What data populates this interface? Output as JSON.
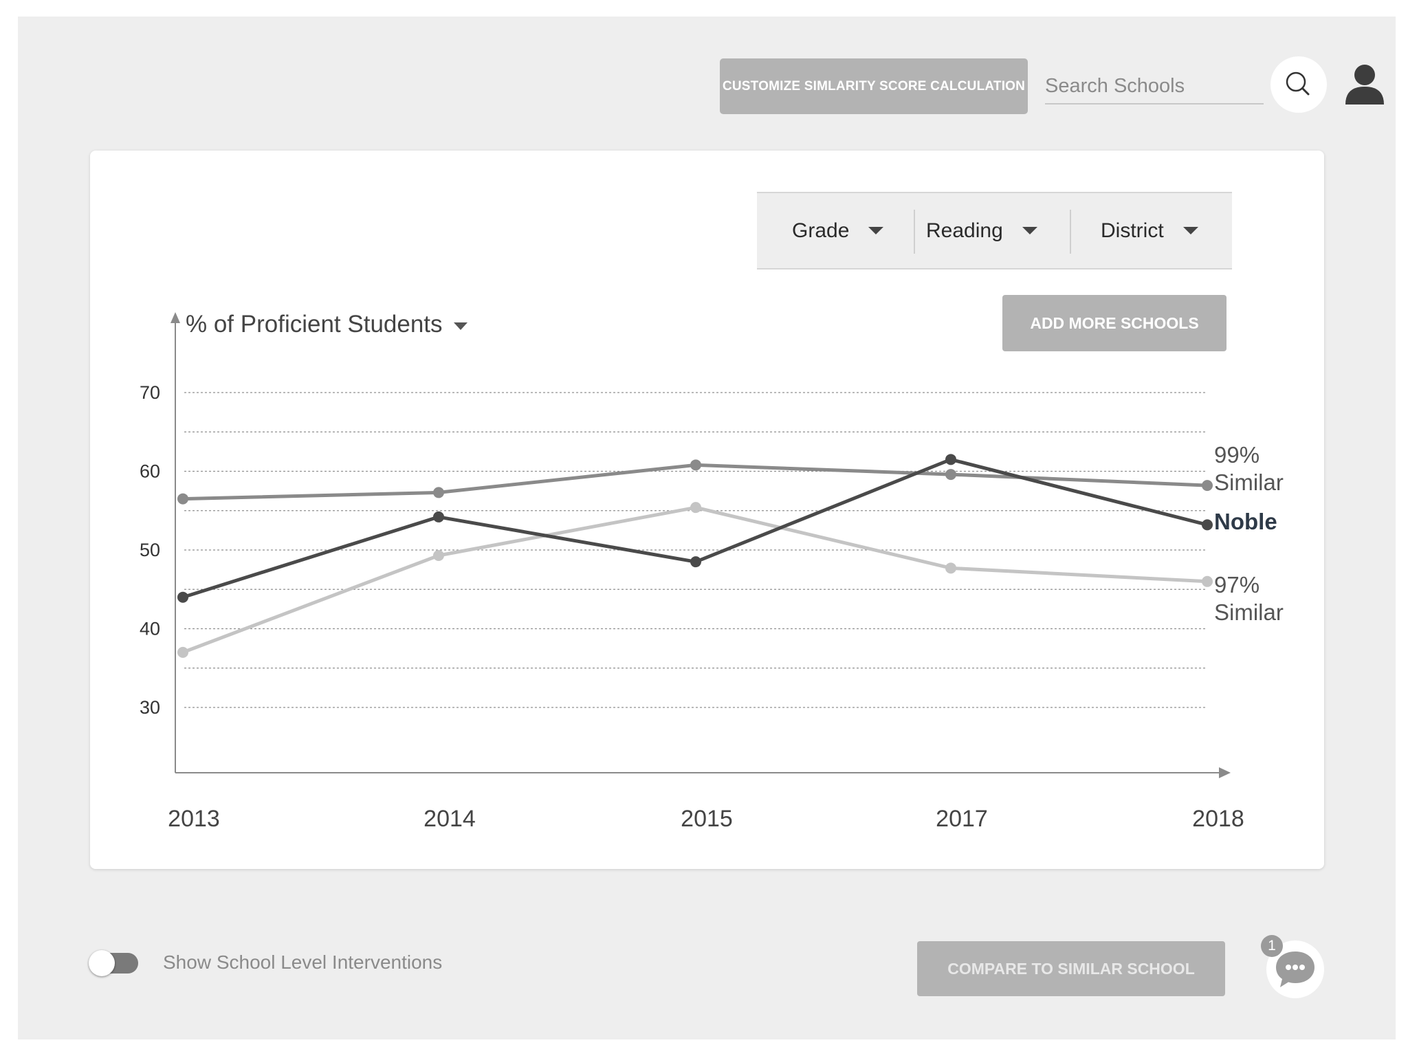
{
  "header": {
    "customize_label": "CUSTOMIZE SIMLARITY SCORE CALCULATION",
    "search_placeholder": "Search Schools"
  },
  "filters": [
    {
      "label": "Grade"
    },
    {
      "label": "Reading"
    },
    {
      "label": "District"
    }
  ],
  "add_schools_label": "ADD MORE SCHOOLS",
  "footer": {
    "toggle_label": "Show School Level Interventions",
    "toggle_on": false,
    "compare_label": "COMPARE TO SIMILAR SCHOOL",
    "chat_badge": "1"
  },
  "chart_data": {
    "type": "line",
    "ylabel": "% of Proficient Students",
    "categories": [
      "2013",
      "2014",
      "2015",
      "2017",
      "2018"
    ],
    "yticks": [
      70,
      60,
      50,
      40,
      30
    ],
    "ylim": [
      30,
      70
    ],
    "grid": "dotted",
    "series": [
      {
        "name": "99% Similar",
        "name_lines": [
          "99%",
          "Similar"
        ],
        "values": [
          56.5,
          57.3,
          60.8,
          59.6,
          58.2
        ],
        "color": "#8a8a8a",
        "bold": false
      },
      {
        "name": "Noble",
        "name_lines": [
          "Noble"
        ],
        "values": [
          44,
          54.2,
          48.5,
          61.5,
          53.2
        ],
        "color": "#4a4a4a",
        "bold": true
      },
      {
        "name": "97% Similar",
        "name_lines": [
          "97%",
          "Similar"
        ],
        "values": [
          37,
          49.3,
          55.4,
          47.7,
          46
        ]
      }
    ],
    "series_colors": [
      "#8a8a8a",
      "#4a4a4a",
      "#c4c4c4"
    ]
  }
}
